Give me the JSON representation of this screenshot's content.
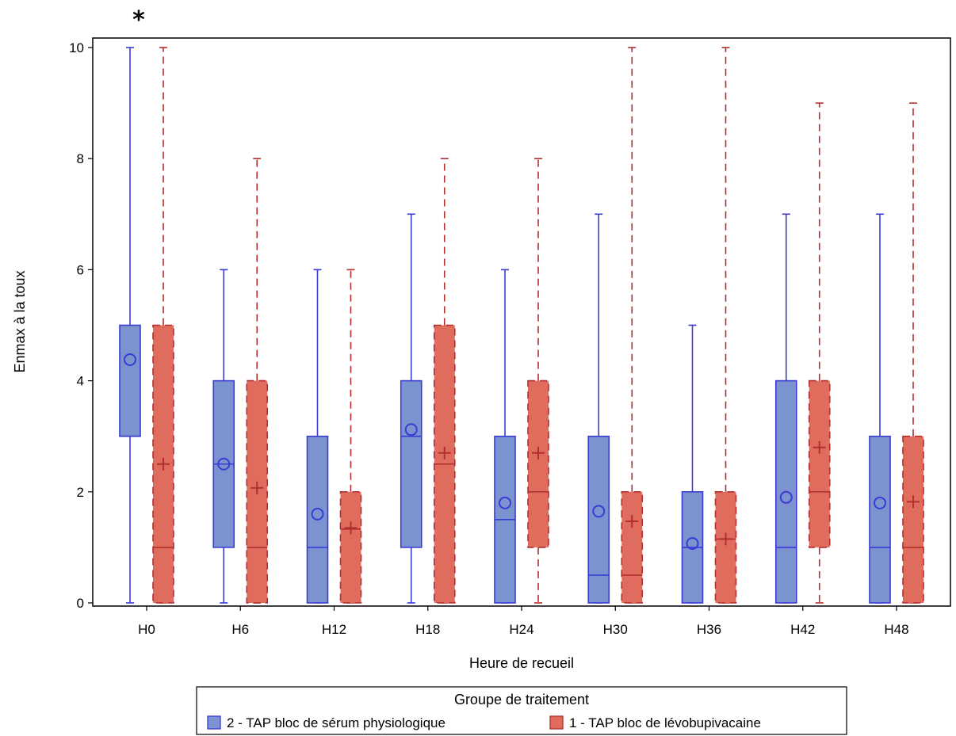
{
  "chart_data": {
    "type": "boxplot",
    "xlabel": "Heure de recueil",
    "ylabel": "Enmax à la toux",
    "ylim": [
      0,
      10
    ],
    "yticks": [
      "0",
      "2",
      "4",
      "6",
      "8",
      "10"
    ],
    "categories": [
      "H0",
      "H6",
      "H12",
      "H18",
      "H24",
      "H30",
      "H36",
      "H42",
      "H48"
    ],
    "annotations": [
      {
        "category": "H0",
        "text": "*"
      }
    ],
    "legend": {
      "title": "Groupe de traitement",
      "position": "bottom"
    },
    "series": [
      {
        "name": "2 - TAP bloc de sérum physiologique",
        "color": "#7b93cf",
        "stroke": "#3b3bd4",
        "mean_marker": "circle",
        "whisker_style": "solid",
        "boxes": [
          {
            "min": 0,
            "q1": 3,
            "median": 3,
            "q3": 5,
            "max": 10,
            "mean": 4.38
          },
          {
            "min": 0,
            "q1": 1,
            "median": 2.5,
            "q3": 4,
            "max": 6,
            "mean": 2.5
          },
          {
            "min": 0,
            "q1": 0,
            "median": 1,
            "q3": 3,
            "max": 6,
            "mean": 1.6
          },
          {
            "min": 0,
            "q1": 1,
            "median": 3,
            "q3": 4,
            "max": 7,
            "mean": 3.12
          },
          {
            "min": 0,
            "q1": 0,
            "median": 1.5,
            "q3": 3,
            "max": 6,
            "mean": 1.8
          },
          {
            "min": 0,
            "q1": 0,
            "median": 0.5,
            "q3": 3,
            "max": 7,
            "mean": 1.65
          },
          {
            "min": 0,
            "q1": 0,
            "median": 1,
            "q3": 2,
            "max": 5,
            "mean": 1.07
          },
          {
            "min": 0,
            "q1": 0,
            "median": 1,
            "q3": 4,
            "max": 7,
            "mean": 1.9
          },
          {
            "min": 0,
            "q1": 0,
            "median": 1,
            "q3": 3,
            "max": 7,
            "mean": 1.8
          }
        ]
      },
      {
        "name": "1 - TAP bloc de lévobupivacaine",
        "color": "#e06c5e",
        "stroke": "#b22f2f",
        "mean_marker": "plus",
        "whisker_style": "dashed",
        "boxes": [
          {
            "min": 0,
            "q1": 0,
            "median": 1,
            "q3": 5,
            "max": 10,
            "mean": 2.5
          },
          {
            "min": 0,
            "q1": 0,
            "median": 1,
            "q3": 4,
            "max": 8,
            "mean": 2.07
          },
          {
            "min": 0,
            "q1": 0,
            "median": 1.33,
            "q3": 2,
            "max": 6,
            "mean": 1.35
          },
          {
            "min": 0,
            "q1": 0,
            "median": 2.5,
            "q3": 5,
            "max": 8,
            "mean": 2.7
          },
          {
            "min": 0,
            "q1": 1,
            "median": 2,
            "q3": 4,
            "max": 8,
            "mean": 2.7
          },
          {
            "min": 0,
            "q1": 0,
            "median": 0.5,
            "q3": 2,
            "max": 10,
            "mean": 1.47
          },
          {
            "min": 0,
            "q1": 0,
            "median": 1.15,
            "q3": 2,
            "max": 10,
            "mean": 1.15
          },
          {
            "min": 0,
            "q1": 1,
            "median": 2,
            "q3": 4,
            "max": 9,
            "mean": 2.8
          },
          {
            "min": 0,
            "q1": 0,
            "median": 1,
            "q3": 3,
            "max": 9,
            "mean": 1.82
          }
        ]
      }
    ]
  }
}
